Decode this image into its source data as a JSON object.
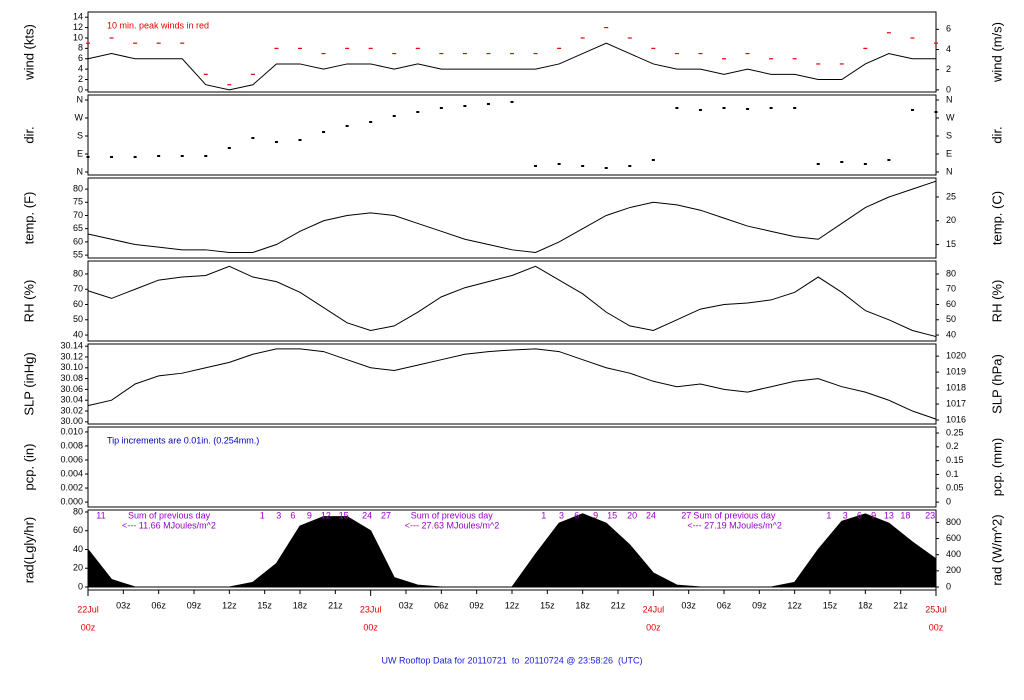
{
  "chart_data": [
    {
      "type": "line",
      "ylabel": "wind (kts)",
      "y2label": "wind (m/s)",
      "annotation": "10 min. peak winds in red",
      "annotation_color": "#e00000",
      "xlim": [
        0,
        72
      ],
      "x": [
        0,
        2,
        4,
        6,
        8,
        10,
        12,
        14,
        16,
        18,
        20,
        22,
        24,
        26,
        28,
        30,
        32,
        34,
        36,
        38,
        40,
        42,
        44,
        46,
        48,
        50,
        52,
        54,
        56,
        58,
        60,
        62,
        64,
        66,
        68,
        70,
        72
      ],
      "ylim": [
        -0.4,
        15
      ],
      "yticks": [
        0,
        2,
        4,
        6,
        8,
        10,
        12,
        14
      ],
      "y2lim": [
        -0.21,
        7.72
      ],
      "y2ticks": [
        0,
        2,
        4,
        6
      ],
      "series": [
        {
          "color": "#000000",
          "marker": "line",
          "values": [
            6,
            7,
            6,
            6,
            6,
            1,
            0,
            1,
            5,
            5,
            4,
            5,
            5,
            4,
            5,
            4,
            4,
            4,
            4,
            4,
            5,
            7,
            9,
            7,
            5,
            4,
            4,
            3,
            4,
            3,
            3,
            2,
            2,
            5,
            7,
            6,
            6
          ]
        },
        {
          "color": "#e00000",
          "marker": "dash",
          "values": [
            9,
            10,
            9,
            9,
            9,
            3,
            1,
            3,
            8,
            8,
            7,
            8,
            8,
            7,
            8,
            7,
            7,
            7,
            7,
            7,
            8,
            10,
            12,
            10,
            8,
            7,
            7,
            6,
            7,
            6,
            6,
            5,
            5,
            8,
            11,
            10,
            9
          ]
        }
      ]
    },
    {
      "type": "scatter",
      "ylabel": "dir.",
      "y2label": "dir.",
      "xlim": [
        0,
        72
      ],
      "x": [
        0,
        2,
        4,
        6,
        8,
        10,
        12,
        14,
        16,
        18,
        20,
        22,
        24,
        26,
        28,
        30,
        32,
        34,
        36,
        38,
        40,
        42,
        44,
        46,
        48,
        50,
        52,
        54,
        56,
        58,
        60,
        62,
        64,
        66,
        68,
        70,
        72
      ],
      "ylim": [
        -15,
        385
      ],
      "yticks": [
        {
          "value": 0,
          "label": "N"
        },
        {
          "value": 90,
          "label": "E"
        },
        {
          "value": 180,
          "label": "S"
        },
        {
          "value": 270,
          "label": "W"
        },
        {
          "value": 360,
          "label": "N"
        }
      ],
      "y2lim": [
        -15,
        385
      ],
      "y2ticks": [
        {
          "value": 0,
          "label": "N"
        },
        {
          "value": 90,
          "label": "E"
        },
        {
          "value": 180,
          "label": "S"
        },
        {
          "value": 270,
          "label": "W"
        },
        {
          "value": 360,
          "label": "N"
        }
      ],
      "series": [
        {
          "color": "#000000",
          "values": [
            75,
            75,
            75,
            80,
            80,
            80,
            120,
            170,
            150,
            160,
            200,
            230,
            250,
            280,
            300,
            320,
            330,
            340,
            350,
            30,
            40,
            30,
            20,
            30,
            60,
            320,
            310,
            320,
            315,
            320,
            320,
            40,
            50,
            40,
            60,
            310,
            300
          ]
        }
      ]
    },
    {
      "type": "line",
      "ylabel": "temp. (F)",
      "y2label": "temp. (C)",
      "xlim": [
        0,
        72
      ],
      "x": [
        0,
        2,
        4,
        6,
        8,
        10,
        12,
        14,
        16,
        18,
        20,
        22,
        24,
        26,
        28,
        30,
        32,
        34,
        36,
        38,
        40,
        42,
        44,
        46,
        48,
        50,
        52,
        54,
        56,
        58,
        60,
        62,
        64,
        66,
        68,
        70,
        72
      ],
      "ylim": [
        53.9,
        84.2
      ],
      "yticks": [
        55,
        60,
        65,
        70,
        75,
        80
      ],
      "y2lim": [
        12.17,
        29.0
      ],
      "y2ticks": [
        15,
        20,
        25
      ],
      "series": [
        {
          "color": "#000000",
          "marker": "line",
          "values": [
            63,
            61,
            59,
            58,
            57,
            57,
            56,
            56,
            59,
            64,
            68,
            70,
            71,
            70,
            67,
            64,
            61,
            59,
            57,
            56,
            60,
            65,
            70,
            73,
            75,
            74,
            72,
            69,
            66,
            64,
            62,
            61,
            67,
            73,
            77,
            80,
            83
          ]
        }
      ]
    },
    {
      "type": "line",
      "ylabel": "RH (%)",
      "y2label": "RH (%)",
      "xlim": [
        0,
        72
      ],
      "x": [
        0,
        2,
        4,
        6,
        8,
        10,
        12,
        14,
        16,
        18,
        20,
        22,
        24,
        26,
        28,
        30,
        32,
        34,
        36,
        38,
        40,
        42,
        44,
        46,
        48,
        50,
        52,
        54,
        56,
        58,
        60,
        62,
        64,
        66,
        68,
        70,
        72
      ],
      "ylim": [
        36.1,
        88.5
      ],
      "yticks": [
        40,
        50,
        60,
        70,
        80
      ],
      "y2lim": [
        36.1,
        88.5
      ],
      "y2ticks": [
        40,
        50,
        60,
        70,
        80
      ],
      "series": [
        {
          "color": "#000000",
          "marker": "line",
          "values": [
            69,
            64,
            70,
            76,
            78,
            79,
            85,
            78,
            75,
            68,
            58,
            48,
            43,
            46,
            55,
            65,
            71,
            75,
            79,
            85,
            76,
            67,
            55,
            46,
            43,
            50,
            57,
            60,
            61,
            63,
            68,
            78,
            68,
            56,
            50,
            43,
            39
          ]
        }
      ]
    },
    {
      "type": "line",
      "ylabel": "SLP (inHg)",
      "y2label": "SLP (hPa)",
      "xlim": [
        0,
        72
      ],
      "x": [
        0,
        2,
        4,
        6,
        8,
        10,
        12,
        14,
        16,
        18,
        20,
        22,
        24,
        26,
        28,
        30,
        32,
        34,
        36,
        38,
        40,
        42,
        44,
        46,
        48,
        50,
        52,
        54,
        56,
        58,
        60,
        62,
        64,
        66,
        68,
        70,
        72
      ],
      "ylim": [
        29.996,
        30.144
      ],
      "yticks": [
        {
          "value": 30.0,
          "label": "30.00"
        },
        {
          "value": 30.02,
          "label": "30.02"
        },
        {
          "value": 30.04,
          "label": "30.04"
        },
        {
          "value": 30.06,
          "label": "30.06"
        },
        {
          "value": 30.08,
          "label": "30.08"
        },
        {
          "value": 30.1,
          "label": "30.10"
        },
        {
          "value": 30.12,
          "label": "30.12"
        },
        {
          "value": 30.14,
          "label": "30.14"
        }
      ],
      "y2lim": [
        1015.75,
        1020.76
      ],
      "y2ticks": [
        1016,
        1017,
        1018,
        1019,
        1020
      ],
      "series": [
        {
          "color": "#000000",
          "marker": "line",
          "values": [
            30.03,
            30.04,
            30.07,
            30.085,
            30.09,
            30.1,
            30.11,
            30.125,
            30.135,
            30.135,
            30.13,
            30.115,
            30.1,
            30.095,
            30.105,
            30.115,
            30.125,
            30.13,
            30.133,
            30.135,
            30.13,
            30.115,
            30.1,
            30.09,
            30.075,
            30.065,
            30.07,
            30.06,
            30.055,
            30.065,
            30.075,
            30.08,
            30.065,
            30.055,
            30.04,
            30.02,
            30.005
          ]
        }
      ]
    },
    {
      "type": "line",
      "ylabel": "pcp. (in)",
      "y2label": "pcp. (mm)",
      "annotation": "Tip increments are 0.01in. (0.254mm.)",
      "annotation_color": "#0000c0",
      "xlim": [
        0,
        72
      ],
      "ylim": [
        -0.0007,
        0.0107
      ],
      "yticks": [
        {
          "value": 0,
          "label": "0.000"
        },
        {
          "value": 0.002,
          "label": "0.002"
        },
        {
          "value": 0.004,
          "label": "0.004"
        },
        {
          "value": 0.006,
          "label": "0.006"
        },
        {
          "value": 0.008,
          "label": "0.008"
        },
        {
          "value": 0.01,
          "label": "0.010"
        }
      ],
      "y2lim": [
        -0.0178,
        0.2718
      ],
      "y2ticks": [
        0,
        0.05,
        0.1,
        0.15,
        0.2,
        0.25
      ],
      "series": []
    },
    {
      "type": "area",
      "ylabel": "rad(Lgly/hr)",
      "y2label": "rad (W/m^2)",
      "xlim": [
        0,
        72
      ],
      "x": [
        0,
        2,
        4,
        6,
        8,
        10,
        12,
        14,
        16,
        18,
        20,
        22,
        24,
        26,
        28,
        30,
        32,
        34,
        36,
        38,
        40,
        42,
        44,
        46,
        48,
        50,
        52,
        54,
        56,
        58,
        60,
        62,
        64,
        66,
        68,
        70,
        72
      ],
      "ylim": [
        -3.2,
        82.1
      ],
      "yticks": [
        0,
        20,
        40,
        60,
        80
      ],
      "y2lim": [
        -37.2,
        954
      ],
      "y2ticks": [
        0,
        200,
        400,
        600,
        800
      ],
      "series": [
        {
          "color": "#000000",
          "values": [
            40,
            8,
            0,
            0,
            0,
            0,
            0,
            5,
            25,
            65,
            75,
            75,
            60,
            10,
            2,
            0,
            0,
            0,
            0,
            35,
            68,
            78,
            68,
            45,
            15,
            2,
            0,
            0,
            0,
            0,
            5,
            40,
            70,
            78,
            68,
            48,
            30
          ]
        }
      ],
      "hour_labels": [
        {
          "value": 1.1,
          "label": "11"
        },
        {
          "value": 14.8,
          "label": "1"
        },
        {
          "value": 16.2,
          "label": "3"
        },
        {
          "value": 17.4,
          "label": "6"
        },
        {
          "value": 18.8,
          "label": "9"
        },
        {
          "value": 20.2,
          "label": "12"
        },
        {
          "value": 21.7,
          "label": "15"
        },
        {
          "value": 23.7,
          "label": "24"
        },
        {
          "value": 25.3,
          "label": "27"
        },
        {
          "value": 38.7,
          "label": "1"
        },
        {
          "value": 40.2,
          "label": "3"
        },
        {
          "value": 41.5,
          "label": "6"
        },
        {
          "value": 43.1,
          "label": "9"
        },
        {
          "value": 44.5,
          "label": "15"
        },
        {
          "value": 46.2,
          "label": "20"
        },
        {
          "value": 47.8,
          "label": "24"
        },
        {
          "value": 50.8,
          "label": "27"
        },
        {
          "value": 62.9,
          "label": "1"
        },
        {
          "value": 64.3,
          "label": "3"
        },
        {
          "value": 65.5,
          "label": "6"
        },
        {
          "value": 66.7,
          "label": "9"
        },
        {
          "value": 68.0,
          "label": "13"
        },
        {
          "value": 69.4,
          "label": "18"
        },
        {
          "value": 71.5,
          "label": "23"
        }
      ],
      "day_sums": [
        {
          "label": "Sum of previous day",
          "total": "<--- 11.66 MJoules/m^2"
        },
        {
          "label": "Sum of previous day",
          "total": "<--- 27.63 MJoules/m^2"
        },
        {
          "label": "Sum of previous day",
          "total": "<--- 27.19 MJoules/m^2"
        }
      ],
      "xticks": [
        {
          "value": 3,
          "label": "03z"
        },
        {
          "value": 6,
          "label": "06z"
        },
        {
          "value": 9,
          "label": "09z"
        },
        {
          "value": 12,
          "label": "12z"
        },
        {
          "value": 15,
          "label": "15z"
        },
        {
          "value": 18,
          "label": "18z"
        },
        {
          "value": 21,
          "label": "21z"
        },
        {
          "value": 27,
          "label": "03z"
        },
        {
          "value": 30,
          "label": "06z"
        },
        {
          "value": 33,
          "label": "09z"
        },
        {
          "value": 36,
          "label": "12z"
        },
        {
          "value": 39,
          "label": "15z"
        },
        {
          "value": 42,
          "label": "18z"
        },
        {
          "value": 45,
          "label": "21z"
        },
        {
          "value": 51,
          "label": "03z"
        },
        {
          "value": 54,
          "label": "06z"
        },
        {
          "value": 57,
          "label": "09z"
        },
        {
          "value": 60,
          "label": "12z"
        },
        {
          "value": 63,
          "label": "15z"
        },
        {
          "value": 66,
          "label": "18z"
        },
        {
          "value": 69,
          "label": "21z"
        }
      ],
      "date_ticks": [
        {
          "value": 0,
          "label": "22Jul",
          "sub": "00z"
        },
        {
          "value": 24,
          "label": "23Jul",
          "sub": "00z"
        },
        {
          "value": 48,
          "label": "24Jul",
          "sub": "00z"
        },
        {
          "value": 72,
          "label": "25Jul",
          "sub": "00z"
        }
      ],
      "title": "UW Rooftop Data for 20110721  to  20110724 @ 23:58:26  (UTC)"
    }
  ]
}
